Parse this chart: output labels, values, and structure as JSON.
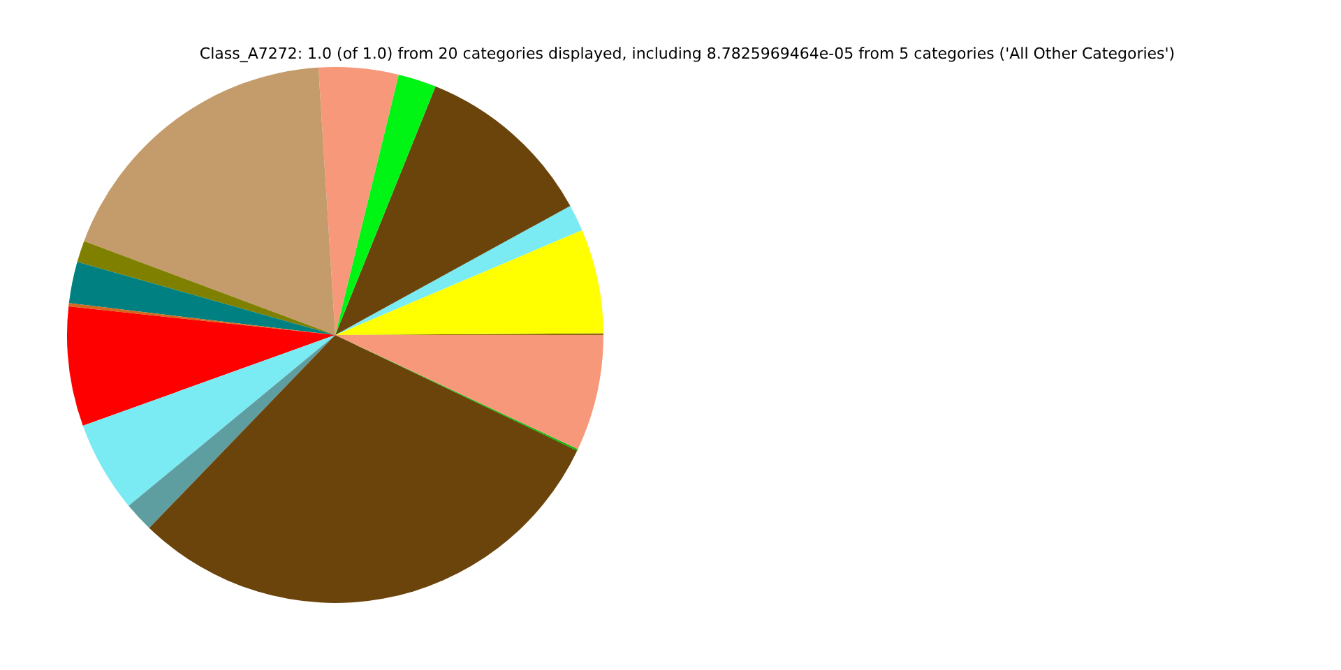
{
  "chart_data": {
    "type": "pie",
    "title": "Class_A7272: 1.0 (of 1.0) from 20 categories displayed, including 8.7825969464e-05 from 5 categories ('All Other Categories')",
    "categories": [
      null,
      null,
      null,
      null,
      null,
      null,
      null,
      null,
      null,
      null,
      null,
      null,
      null,
      null,
      null,
      null
    ],
    "values": [
      0.1,
      6.3,
      1.6,
      10.9,
      2.3,
      4.8,
      18.3,
      1.3,
      2.5,
      0.2,
      7.2,
      5.5,
      1.8,
      30.1,
      0.1,
      7.0
    ],
    "colors": [
      "#8b6914",
      "#ffff00",
      "#7aebf2",
      "#6b440b",
      "#00f515",
      "#f8987a",
      "#c49b6a",
      "#808000",
      "#008080",
      "#d2691e",
      "#ff0000",
      "#7aebf2",
      "#5f9ea0",
      "#6b440b",
      "#00c000",
      "#f8987a"
    ],
    "legend": false
  }
}
